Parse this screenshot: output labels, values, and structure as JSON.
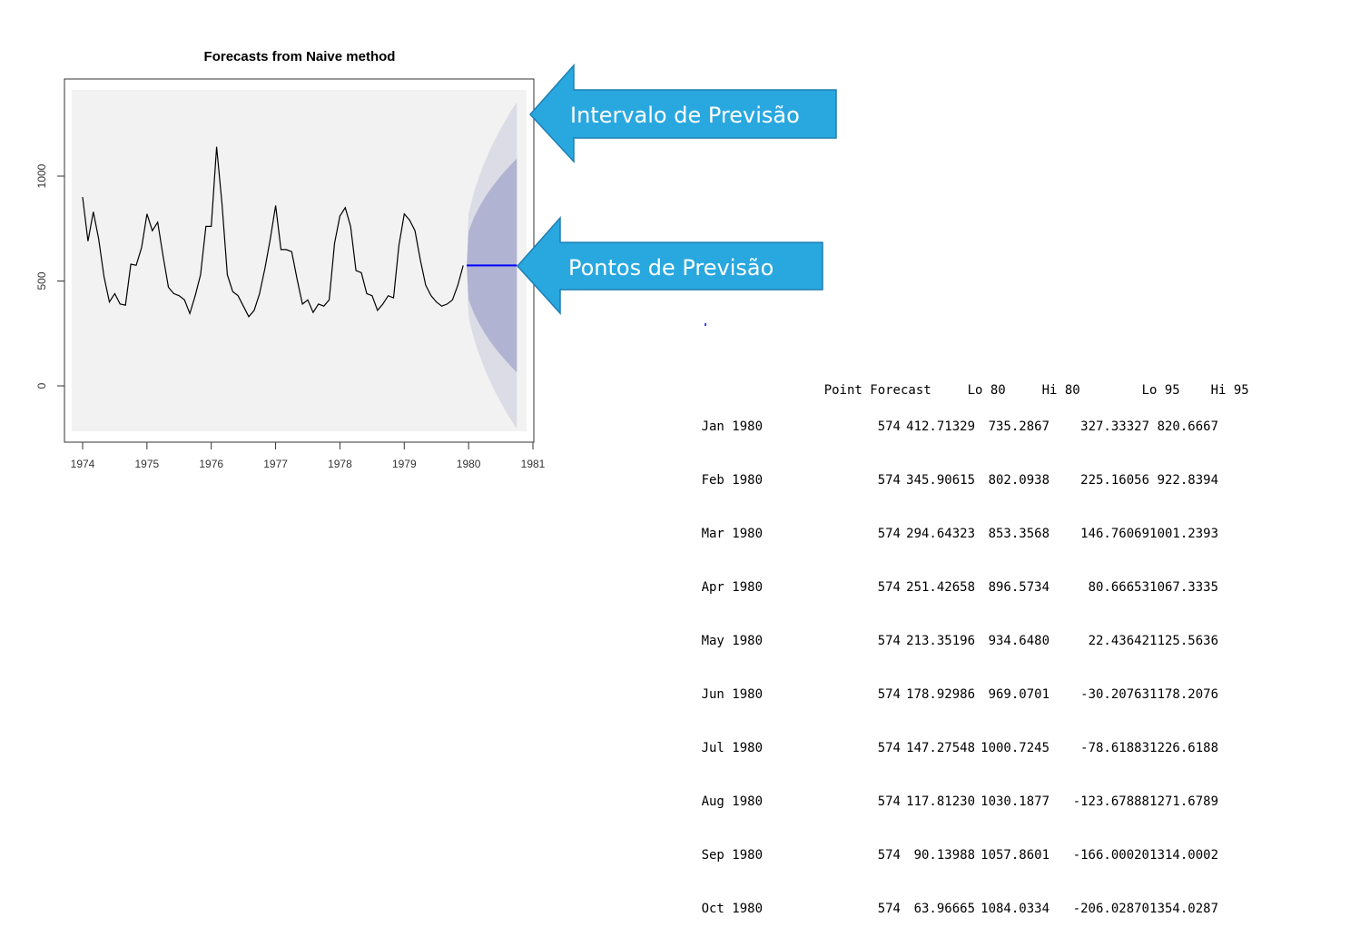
{
  "chart_data": {
    "type": "line",
    "title": "Forecasts from Naive method",
    "xlabel": "",
    "ylabel": "",
    "xlim": [
      1973.75,
      1981.0
    ],
    "ylim": [
      -270,
      1400
    ],
    "x_ticks": [
      "1974",
      "1975",
      "1976",
      "1977",
      "1978",
      "1979",
      "1980",
      "1981"
    ],
    "y_ticks": [
      "0",
      "500",
      "1000"
    ],
    "grid": false,
    "series": [
      {
        "role": "history",
        "color": "#000000",
        "start": 1974.0,
        "step": 0.083333,
        "values": [
          900,
          690,
          830,
          700,
          520,
          400,
          440,
          390,
          385,
          580,
          575,
          660,
          820,
          740,
          780,
          620,
          470,
          440,
          430,
          410,
          345,
          430,
          530,
          760,
          760,
          1140,
          870,
          530,
          450,
          430,
          380,
          330,
          360,
          440,
          560,
          700,
          860,
          650,
          650,
          640,
          510,
          390,
          410,
          350,
          390,
          380,
          410,
          680,
          810,
          850,
          760,
          550,
          540,
          440,
          430,
          360,
          390,
          430,
          420,
          670,
          820,
          790,
          740,
          600,
          480,
          430,
          400,
          380,
          390,
          410,
          480,
          574
        ]
      },
      {
        "role": "point-forecast",
        "color": "#0000ff",
        "x": [
          1980.0,
          1980.083,
          1980.167,
          1980.25,
          1980.333,
          1980.417,
          1980.5,
          1980.583,
          1980.667,
          1980.75
        ],
        "values": [
          574,
          574,
          574,
          574,
          574,
          574,
          574,
          574,
          574,
          574
        ]
      }
    ],
    "intervals": {
      "lo80": [
        412.71329,
        345.90615,
        294.64323,
        251.42658,
        213.35196,
        178.92986,
        147.27548,
        117.8123,
        90.13988,
        63.96665
      ],
      "hi80": [
        735.2867,
        802.0938,
        853.3568,
        896.5734,
        934.648,
        969.0701,
        1000.7245,
        1030.1877,
        1057.8601,
        1084.0334
      ],
      "lo95": [
        327.33327,
        225.16056,
        146.76069,
        80.66653,
        22.43642,
        -30.20763,
        -78.61883,
        -123.67888,
        -166.0002,
        -206.0287
      ],
      "hi95": [
        820.6667,
        922.8394,
        1001.2393,
        1067.3335,
        1125.5636,
        1178.2076,
        1226.6188,
        1271.6789,
        1314.0002,
        1354.0287
      ],
      "color80": "#b0b3d1",
      "color95": "#dcdce6"
    },
    "panel_bg": "#f2f2f2"
  },
  "callouts": {
    "interval_label": "Intervalo de Previsão",
    "points_label": "Pontos de Previsão",
    "color": "#29a8e0",
    "border": "#1f7fb0"
  },
  "table": {
    "headers": [
      "",
      "Point Forecast",
      "Lo 80",
      "Hi 80",
      "Lo 95",
      "Hi 95"
    ],
    "rows": [
      [
        "Jan 1980",
        "574",
        "412.71329",
        "735.2867",
        "327.33327",
        "820.6667"
      ],
      [
        "Feb 1980",
        "574",
        "345.90615",
        "802.0938",
        "225.16056",
        "922.8394"
      ],
      [
        "Mar 1980",
        "574",
        "294.64323",
        "853.3568",
        "146.76069",
        "1001.2393"
      ],
      [
        "Apr 1980",
        "574",
        "251.42658",
        "896.5734",
        "80.66653",
        "1067.3335"
      ],
      [
        "May 1980",
        "574",
        "213.35196",
        "934.6480",
        "22.43642",
        "1125.5636"
      ],
      [
        "Jun 1980",
        "574",
        "178.92986",
        "969.0701",
        "-30.20763",
        "1178.2076"
      ],
      [
        "Jul 1980",
        "574",
        "147.27548",
        "1000.7245",
        "-78.61883",
        "1226.6188"
      ],
      [
        "Aug 1980",
        "574",
        "117.81230",
        "1030.1877",
        "-123.67888",
        "1271.6789"
      ],
      [
        "Sep 1980",
        "574",
        "90.13988",
        "1057.8601",
        "-166.00020",
        "1314.0002"
      ],
      [
        "Oct 1980",
        "574",
        "63.96665",
        "1084.0334",
        "-206.02870",
        "1354.0287"
      ]
    ]
  }
}
